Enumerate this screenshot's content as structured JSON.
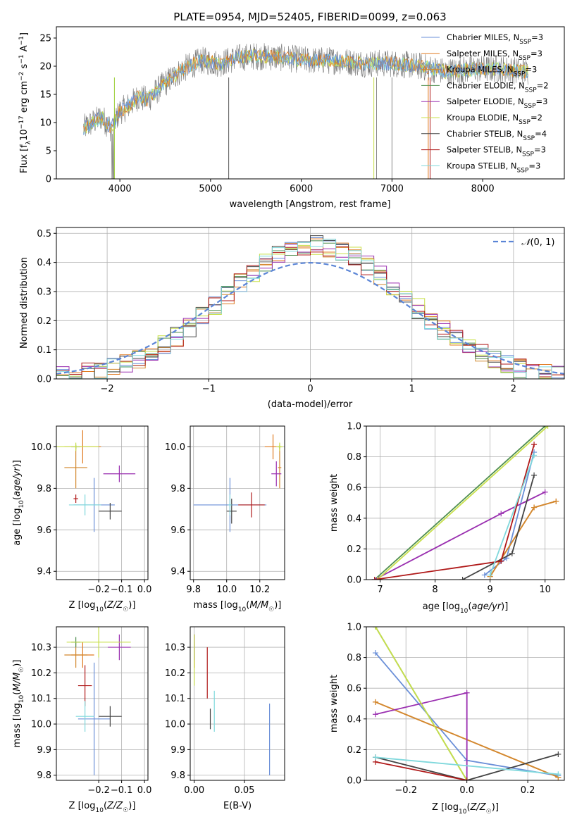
{
  "title": "PLATE=0954, MJD=52405, FIBERID=0099, z=0.063",
  "models": [
    {
      "name": "Chabrier MILES",
      "n": "3",
      "color": "#6a8fd8"
    },
    {
      "name": "Salpeter MILES",
      "n": "3",
      "color": "#e07b22"
    },
    {
      "name": "Kroupa MILES",
      "n": "3",
      "color": "#d2882e"
    },
    {
      "name": "Chabrier ELODIE",
      "n": "2",
      "color": "#4f8f4f"
    },
    {
      "name": "Salpeter ELODIE",
      "n": "3",
      "color": "#9a2fb0"
    },
    {
      "name": "Kroupa ELODIE",
      "n": "2",
      "color": "#c8e04a"
    },
    {
      "name": "Chabrier STELIB",
      "n": "4",
      "color": "#444444"
    },
    {
      "name": "Salpeter STELIB",
      "n": "3",
      "color": "#b01a1a"
    },
    {
      "name": "Kroupa STELIB",
      "n": "3",
      "color": "#7fd8dc"
    }
  ],
  "chart_data": [
    {
      "id": "spectrum",
      "type": "line",
      "xlabel": "wavelength [Angstrom, rest frame]",
      "ylabel": "Flux [f_λ10^-17 erg cm^-2 s^-1 A^-1]",
      "xlim": [
        3300,
        8900
      ],
      "ylim": [
        0,
        27
      ],
      "xticks": [
        4000,
        5000,
        6000,
        7000,
        8000
      ],
      "yticks": [
        0,
        5,
        10,
        15,
        20,
        25
      ],
      "continuum": {
        "x": [
          3600,
          3700,
          3800,
          3900,
          4000,
          4100,
          4200,
          4300,
          4500,
          4700,
          4900,
          5100,
          5300,
          5500,
          5800,
          6100,
          6400,
          6700,
          7000,
          7300,
          7600,
          7900,
          8200,
          8500
        ],
        "y": [
          9,
          10,
          11,
          9,
          12,
          13,
          14.5,
          14,
          17,
          19.5,
          21,
          20.5,
          21.5,
          21.8,
          21.5,
          21,
          21,
          20.5,
          20.5,
          20,
          19,
          19.5,
          19.5,
          19
        ]
      },
      "grid": false,
      "legend": "upper right"
    },
    {
      "id": "residual_hist",
      "type": "histogram",
      "xlabel": "(data-model)/error",
      "ylabel": "Normed distribution",
      "xlim": [
        -2.5,
        2.5
      ],
      "ylim": [
        0,
        0.52
      ],
      "xticks": [
        -2,
        -1,
        0,
        1,
        2
      ],
      "yticks": [
        0.0,
        0.1,
        0.2,
        0.3,
        0.4,
        0.5
      ],
      "reference": {
        "name": "N(0,1)",
        "mean": 0,
        "sigma": 1
      },
      "grid": true,
      "legend": "upper right"
    },
    {
      "id": "age_vs_Z",
      "type": "errorbar",
      "xlabel": "Z [log10(Z/Z☉)]",
      "ylabel": "age [log10(age/yr)]",
      "xlim": [
        -0.385,
        0.015
      ],
      "ylim": [
        9.36,
        10.1
      ],
      "xticks": [
        -0.2,
        -0.1,
        0.0
      ],
      "yticks": [
        9.4,
        9.6,
        9.8,
        10.0
      ],
      "points": [
        {
          "m": 0,
          "x": -0.22,
          "xerr": 0.09,
          "y": 9.72,
          "yerr": 0.13
        },
        {
          "m": 1,
          "x": -0.27,
          "xerr": 0.08,
          "y": 10.0,
          "yerr": 0.08
        },
        {
          "m": 2,
          "x": -0.3,
          "xerr": 0.05,
          "y": 9.9,
          "yerr": 0.1
        },
        {
          "m": 3,
          "x": -0.3,
          "xerr": 0.02,
          "y": 10.0,
          "yerr": 0.01
        },
        {
          "m": 4,
          "x": -0.11,
          "xerr": 0.07,
          "y": 9.87,
          "yerr": 0.04
        },
        {
          "m": 5,
          "x": -0.3,
          "xerr": 0.1,
          "y": 10.0,
          "yerr": 0.02
        },
        {
          "m": 6,
          "x": -0.15,
          "xerr": 0.05,
          "y": 9.69,
          "yerr": 0.04
        },
        {
          "m": 7,
          "x": -0.3,
          "xerr": 0.01,
          "y": 9.75,
          "yerr": 0.02
        },
        {
          "m": 8,
          "x": -0.26,
          "xerr": 0.07,
          "y": 9.72,
          "yerr": 0.05
        }
      ]
    },
    {
      "id": "age_vs_mass",
      "type": "errorbar",
      "xlabel": "mass [log10(M/M☉)]",
      "ylabel": "",
      "xlim": [
        9.78,
        10.35
      ],
      "ylim": [
        9.36,
        10.1
      ],
      "xticks": [
        9.8,
        10.0,
        10.2
      ],
      "yticks": [
        9.4,
        9.6,
        9.8,
        10.0
      ],
      "points": [
        {
          "m": 0,
          "x": 10.02,
          "xerr": 0.22,
          "y": 9.72,
          "yerr": 0.13
        },
        {
          "m": 1,
          "x": 10.28,
          "xerr": 0.05,
          "y": 10.0,
          "yerr": 0.06
        },
        {
          "m": 2,
          "x": 10.32,
          "xerr": 0.01,
          "y": 9.9,
          "yerr": 0.1
        },
        {
          "m": 3,
          "x": 10.32,
          "xerr": 0.01,
          "y": 10.0,
          "yerr": 0.01
        },
        {
          "m": 4,
          "x": 10.3,
          "xerr": 0.03,
          "y": 9.87,
          "yerr": 0.06
        },
        {
          "m": 5,
          "x": 10.32,
          "xerr": 0.02,
          "y": 10.0,
          "yerr": 0.02
        },
        {
          "m": 6,
          "x": 10.03,
          "xerr": 0.03,
          "y": 9.69,
          "yerr": 0.06
        },
        {
          "m": 7,
          "x": 10.15,
          "xerr": 0.08,
          "y": 9.72,
          "yerr": 0.06
        },
        {
          "m": 8,
          "x": 10.02,
          "xerr": 0.01,
          "y": 9.72,
          "yerr": 0.05
        }
      ]
    },
    {
      "id": "weight_vs_age",
      "type": "line",
      "xlabel": "age [log10(age/yr)]",
      "ylabel": "mass weight",
      "xlim": [
        6.75,
        10.35
      ],
      "ylim": [
        0,
        1
      ],
      "xticks": [
        7,
        8,
        9,
        10
      ],
      "yticks": [
        0.0,
        0.2,
        0.4,
        0.6,
        0.8,
        1.0
      ],
      "series": [
        {
          "m": 0,
          "x": [
            8.9,
            9.3,
            9.8
          ],
          "y": [
            0.03,
            0.14,
            0.83
          ]
        },
        {
          "m": 1,
          "x": [
            9.0,
            9.8,
            10.2
          ],
          "y": [
            0.02,
            0.47,
            0.51
          ]
        },
        {
          "m": 2,
          "x": [
            9.0,
            9.8,
            10.2
          ],
          "y": [
            0.02,
            0.47,
            0.51
          ]
        },
        {
          "m": 3,
          "x": [
            6.9,
            10.0
          ],
          "y": [
            0.0,
            1.0
          ]
        },
        {
          "m": 4,
          "x": [
            6.9,
            9.2,
            10.0
          ],
          "y": [
            0.0,
            0.43,
            0.57
          ]
        },
        {
          "m": 5,
          "x": [
            6.95,
            10.05
          ],
          "y": [
            0.0,
            1.0
          ]
        },
        {
          "m": 6,
          "x": [
            8.5,
            9.4,
            9.8
          ],
          "y": [
            0.0,
            0.17,
            0.68
          ]
        },
        {
          "m": 7,
          "x": [
            6.9,
            9.2,
            9.8
          ],
          "y": [
            0.0,
            0.12,
            0.88
          ]
        },
        {
          "m": 8,
          "x": [
            9.0,
            9.8
          ],
          "y": [
            0.03,
            0.81
          ]
        }
      ]
    },
    {
      "id": "mass_vs_Z",
      "type": "errorbar",
      "xlabel": "Z [log10(Z/Z☉)]",
      "ylabel": "mass [log10(M/M☉)]",
      "xlim": [
        -0.385,
        0.015
      ],
      "ylim": [
        9.78,
        10.38
      ],
      "xticks": [
        -0.2,
        -0.1,
        0.0
      ],
      "yticks": [
        9.8,
        9.9,
        10.0,
        10.1,
        10.2,
        10.3
      ],
      "points": [
        {
          "m": 0,
          "x": -0.22,
          "xerr": 0.07,
          "y": 10.02,
          "yerr": 0.22
        },
        {
          "m": 1,
          "x": -0.27,
          "xerr": 0.05,
          "y": 10.27,
          "yerr": 0.05
        },
        {
          "m": 2,
          "x": -0.3,
          "xerr": 0.05,
          "y": 10.27,
          "yerr": 0.05
        },
        {
          "m": 3,
          "x": -0.3,
          "xerr": 0.02,
          "y": 10.32,
          "yerr": 0.02
        },
        {
          "m": 4,
          "x": -0.11,
          "xerr": 0.05,
          "y": 10.3,
          "yerr": 0.05
        },
        {
          "m": 5,
          "x": -0.2,
          "xerr": 0.14,
          "y": 10.32,
          "yerr": 0.06
        },
        {
          "m": 6,
          "x": -0.15,
          "xerr": 0.05,
          "y": 10.03,
          "yerr": 0.04
        },
        {
          "m": 7,
          "x": -0.26,
          "xerr": 0.03,
          "y": 10.15,
          "yerr": 0.08
        },
        {
          "m": 8,
          "x": -0.26,
          "xerr": 0.04,
          "y": 10.03,
          "yerr": 0.06
        }
      ]
    },
    {
      "id": "mass_vs_ebv",
      "type": "errorbar",
      "xlabel": "E(B-V)",
      "ylabel": "",
      "xlim": [
        -0.004,
        0.09
      ],
      "ylim": [
        9.78,
        10.38
      ],
      "xticks": [
        0.0,
        0.05
      ],
      "yticks": [
        9.8,
        9.9,
        10.0,
        10.1,
        10.2,
        10.3
      ],
      "points": [
        {
          "m": 0,
          "x": 0.075,
          "xerr": 0.0,
          "y": 9.94,
          "yerr": 0.14
        },
        {
          "m": 1,
          "x": 0.0,
          "xerr": 0.0,
          "y": 10.27,
          "yerr": 0.05
        },
        {
          "m": 2,
          "x": 0.0,
          "xerr": 0.0,
          "y": 10.27,
          "yerr": 0.05
        },
        {
          "m": 3,
          "x": 0.0,
          "xerr": 0.0,
          "y": 10.3,
          "yerr": 0.05
        },
        {
          "m": 4,
          "x": 0.0,
          "xerr": 0.0,
          "y": 10.3,
          "yerr": 0.05
        },
        {
          "m": 5,
          "x": 0.0,
          "xerr": 0.0,
          "y": 10.25,
          "yerr": 0.1
        },
        {
          "m": 6,
          "x": 0.016,
          "xerr": 0.0,
          "y": 10.02,
          "yerr": 0.04
        },
        {
          "m": 7,
          "x": 0.013,
          "xerr": 0.0,
          "y": 10.2,
          "yerr": 0.1
        },
        {
          "m": 8,
          "x": 0.02,
          "xerr": 0.0,
          "y": 10.05,
          "yerr": 0.08
        }
      ]
    },
    {
      "id": "weight_vs_Z",
      "type": "line",
      "xlabel": "Z [log10(Z/Z☉)]",
      "ylabel": "mass weight",
      "xlim": [
        -0.33,
        0.32
      ],
      "ylim": [
        0,
        1
      ],
      "xticks": [
        -0.2,
        0.0,
        0.2
      ],
      "yticks": [
        0.0,
        0.2,
        0.4,
        0.6,
        0.8,
        1.0
      ],
      "series": [
        {
          "m": 0,
          "x": [
            -0.3,
            0.0,
            0.3
          ],
          "y": [
            0.83,
            0.13,
            0.03
          ]
        },
        {
          "m": 1,
          "x": [
            -0.3,
            0.3
          ],
          "y": [
            0.51,
            0.02
          ]
        },
        {
          "m": 2,
          "x": [
            -0.3,
            0.3
          ],
          "y": [
            0.51,
            0.02
          ]
        },
        {
          "m": 3,
          "x": [
            -0.3,
            0.0
          ],
          "y": [
            1.0,
            0.0
          ]
        },
        {
          "m": 4,
          "x": [
            -0.3,
            0.0,
            0.0
          ],
          "y": [
            0.43,
            0.57,
            0.0
          ]
        },
        {
          "m": 5,
          "x": [
            -0.3,
            0.0
          ],
          "y": [
            1.0,
            0.0
          ]
        },
        {
          "m": 6,
          "x": [
            -0.3,
            0.0,
            0.3
          ],
          "y": [
            0.15,
            0.0,
            0.17
          ]
        },
        {
          "m": 7,
          "x": [
            -0.3,
            0.0
          ],
          "y": [
            0.12,
            0.0
          ]
        },
        {
          "m": 8,
          "x": [
            -0.3,
            0.3
          ],
          "y": [
            0.15,
            0.04
          ]
        }
      ]
    }
  ]
}
